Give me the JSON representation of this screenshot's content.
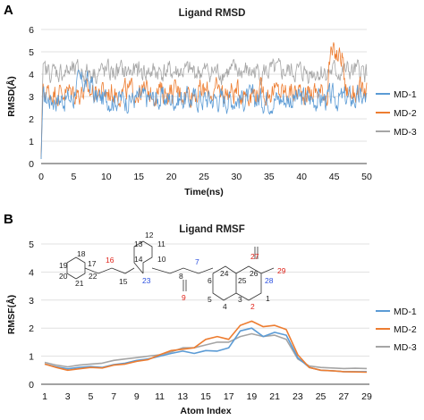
{
  "panels": {
    "a_letter": "A",
    "b_letter": "B"
  },
  "chart_data": [
    {
      "type": "line",
      "title": "Ligand RMSD",
      "xlabel": "Time(ns)",
      "ylabel": "RMSD(Å)",
      "xlim": [
        0,
        50
      ],
      "ylim": [
        0,
        6
      ],
      "xticks": [
        "0",
        "5",
        "10",
        "15",
        "20",
        "25",
        "30",
        "35",
        "40",
        "45",
        "50"
      ],
      "yticks": [
        "0",
        "1",
        "2",
        "3",
        "4",
        "5",
        "6"
      ],
      "grid": "horizontal",
      "legend": "right",
      "series": [
        {
          "name": "MD-1",
          "color": "#5b9bd5",
          "mean": 2.9,
          "start": 0.2,
          "noise": 0.45
        },
        {
          "name": "MD-2",
          "color": "#ed7d31",
          "mean": 3.2,
          "start": 0.3,
          "noise": 0.45
        },
        {
          "name": "MD-3",
          "color": "#a5a5a5",
          "mean": 4.1,
          "start": 0.2,
          "noise": 0.4
        }
      ]
    },
    {
      "type": "line",
      "title": "Ligand RMSF",
      "xlabel": "Atom Index",
      "ylabel": "RMSF(Å)",
      "xlim": [
        1,
        29
      ],
      "ylim": [
        0,
        5
      ],
      "xticks": [
        "1",
        "3",
        "5",
        "7",
        "9",
        "11",
        "13",
        "15",
        "17",
        "19",
        "21",
        "23",
        "25",
        "27",
        "29"
      ],
      "yticks": [
        "0",
        "1",
        "2",
        "3",
        "4",
        "5"
      ],
      "grid": "horizontal",
      "legend": "right",
      "x": [
        1,
        2,
        3,
        4,
        5,
        6,
        7,
        8,
        9,
        10,
        11,
        12,
        13,
        14,
        15,
        16,
        17,
        18,
        19,
        20,
        21,
        22,
        23,
        24,
        25,
        26,
        27,
        28,
        29
      ],
      "series": [
        {
          "name": "MD-1",
          "color": "#5b9bd5",
          "values": [
            0.72,
            0.62,
            0.55,
            0.6,
            0.63,
            0.6,
            0.7,
            0.75,
            0.85,
            0.9,
            1.0,
            1.1,
            1.18,
            1.1,
            1.2,
            1.18,
            1.3,
            1.9,
            2.0,
            1.7,
            1.85,
            1.75,
            0.95,
            0.6,
            0.5,
            0.48,
            0.45,
            0.45,
            0.45
          ]
        },
        {
          "name": "MD-2",
          "color": "#ed7d31",
          "values": [
            0.72,
            0.6,
            0.5,
            0.55,
            0.6,
            0.58,
            0.68,
            0.72,
            0.82,
            0.88,
            1.05,
            1.2,
            1.25,
            1.3,
            1.6,
            1.7,
            1.6,
            2.1,
            2.25,
            2.05,
            2.1,
            1.95,
            1.05,
            0.6,
            0.5,
            0.48,
            0.45,
            0.44,
            0.43
          ]
        },
        {
          "name": "MD-3",
          "color": "#a5a5a5",
          "values": [
            0.78,
            0.68,
            0.62,
            0.68,
            0.72,
            0.75,
            0.85,
            0.9,
            0.95,
            1.0,
            1.05,
            1.15,
            1.3,
            1.3,
            1.4,
            1.5,
            1.5,
            1.7,
            1.8,
            1.7,
            1.75,
            1.6,
            0.9,
            0.65,
            0.6,
            0.58,
            0.56,
            0.57,
            0.56
          ]
        }
      ]
    }
  ],
  "molecule_labels": {
    "a1": "1",
    "a2": "2",
    "a3": "3",
    "a4": "4",
    "a5": "5",
    "a6": "6",
    "a7": "7",
    "a8": "8",
    "a9": "9",
    "a10": "10",
    "a11": "11",
    "a12": "12",
    "a13": "13",
    "a14": "14",
    "a15": "15",
    "a16": "16",
    "a17": "17",
    "a18": "18",
    "a19": "19",
    "a20": "20",
    "a21": "21",
    "a22": "22",
    "a23": "23",
    "a24": "24",
    "a25": "25",
    "a26": "26",
    "a27": "27",
    "a28": "28",
    "a29": "29"
  }
}
